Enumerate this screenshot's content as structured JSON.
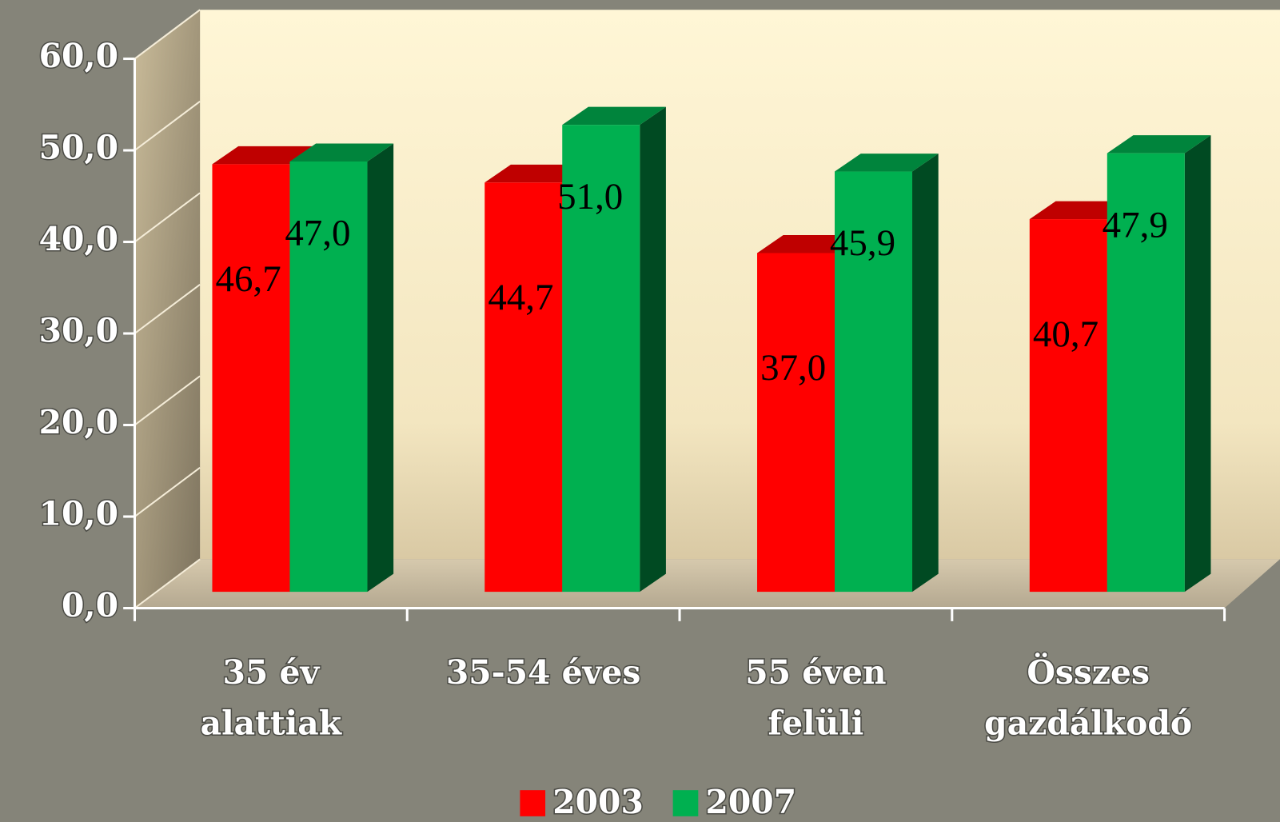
{
  "chart_data": {
    "type": "bar3d",
    "categories": [
      "35 év alattiak",
      "35-54 éves",
      "55 éven felüli",
      "Összes gazdálkodó"
    ],
    "series": [
      {
        "name": "2003",
        "color": "#ff0000",
        "values": [
          46.7,
          44.7,
          37.0,
          40.7
        ],
        "value_labels": [
          "46,7",
          "44,7",
          "37,0",
          "40,7"
        ]
      },
      {
        "name": "2007",
        "color": "#00b050",
        "values": [
          47.0,
          51.0,
          45.9,
          47.9
        ],
        "value_labels": [
          "47,0",
          "51,0",
          "45,9",
          "47,9"
        ]
      }
    ],
    "ylim": [
      0,
      60
    ],
    "yticks": [
      {
        "value": 0,
        "label": "0,0"
      },
      {
        "value": 10,
        "label": "10,0"
      },
      {
        "value": 20,
        "label": "20,0"
      },
      {
        "value": 30,
        "label": "30,0"
      },
      {
        "value": 40,
        "label": "40,0"
      },
      {
        "value": 50,
        "label": "50,0"
      },
      {
        "value": 60,
        "label": "60,0"
      }
    ],
    "legend": "bottom"
  }
}
